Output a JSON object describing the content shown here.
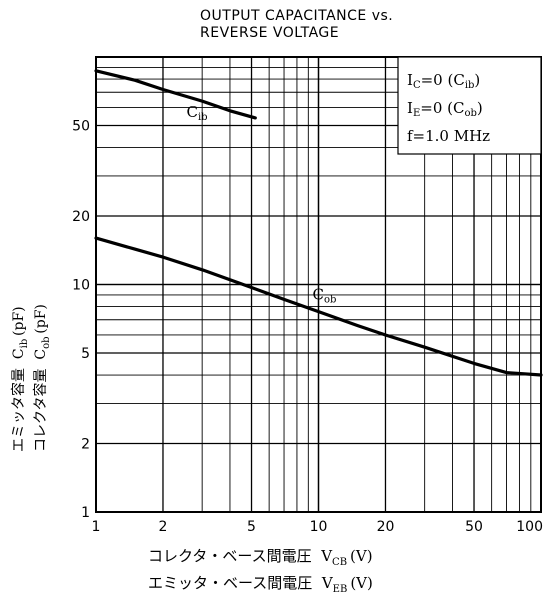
{
  "chart_data": {
    "type": "line",
    "title_lines": [
      "OUTPUT CAPACITANCE vs.",
      "REVERSE VOLTAGE"
    ],
    "x_scale": "log",
    "y_scale": "log",
    "xlim": [
      1,
      100
    ],
    "ylim": [
      1,
      100
    ],
    "x_ticks": [
      1,
      2,
      5,
      10,
      20,
      50,
      100
    ],
    "x_tick_labels": [
      "1",
      "2",
      "5",
      "10",
      "20",
      "50",
      "100"
    ],
    "y_ticks": [
      1,
      2,
      5,
      10,
      20,
      50
    ],
    "y_tick_labels": [
      "1",
      "2",
      "5",
      "10",
      "20",
      "50"
    ],
    "grid": true,
    "xlabel_line1": {
      "text": "コレクタ・ベース間電圧",
      "sym": "V",
      "sub": "CB",
      "unit": "(V)"
    },
    "xlabel_line2": {
      "text": "エミッタ・ベース間電圧",
      "sym": "V",
      "sub": "EB",
      "unit": "(V)"
    },
    "ylabel_line1": {
      "text": "エミッタ容量",
      "sym": "C",
      "sub": "ib",
      "unit": "(pF)"
    },
    "ylabel_line2": {
      "text": "コレクタ容量",
      "sym": "C",
      "sub": "ob",
      "unit": "(pF)"
    },
    "legend_box": {
      "position": "top-right",
      "lines": [
        {
          "sym": "I",
          "sub": "C",
          "rest": "=0 (C",
          "sub2": "ib",
          "end": ")"
        },
        {
          "sym": "I",
          "sub": "E",
          "rest": "=0 (C",
          "sub2": "ob",
          "end": ")"
        },
        {
          "sym": "f=1.0 MHz",
          "sub": "",
          "rest": "",
          "sub2": "",
          "end": ""
        }
      ]
    },
    "series": [
      {
        "name": "Cib",
        "label_sym": "C",
        "label_sub": "ib",
        "x": [
          1,
          1.5,
          2,
          3,
          4,
          5.2
        ],
        "y": [
          87,
          79,
          72,
          64,
          58,
          54
        ]
      },
      {
        "name": "Cob",
        "label_sym": "C",
        "label_sub": "ob",
        "x": [
          1,
          1.5,
          2,
          3,
          5,
          7,
          10,
          15,
          20,
          30,
          50,
          70,
          100
        ],
        "y": [
          16,
          14.3,
          13.2,
          11.6,
          9.7,
          8.6,
          7.6,
          6.6,
          6.0,
          5.3,
          4.5,
          4.1,
          4.0
        ]
      }
    ]
  }
}
